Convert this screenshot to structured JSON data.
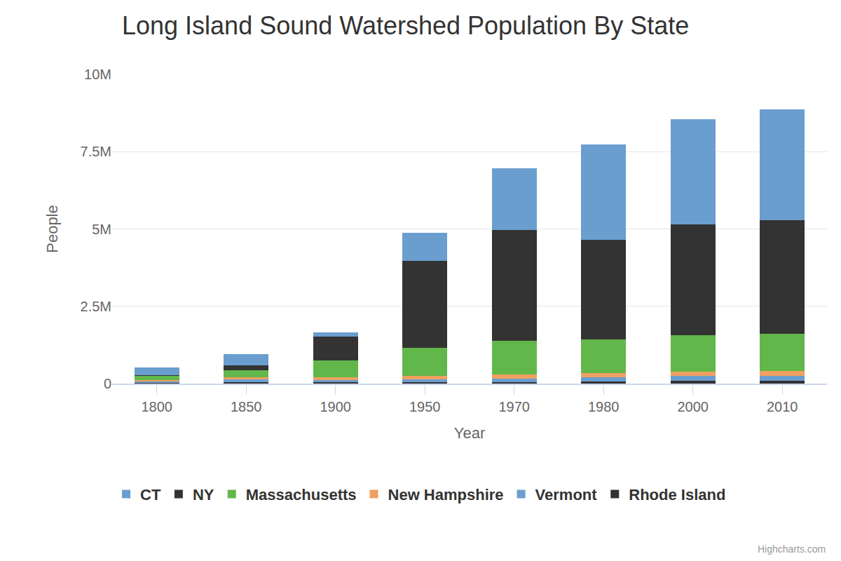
{
  "chart_data": {
    "type": "bar",
    "title": "Long Island Sound Watershed Population By State",
    "x_label": "Year",
    "y_label": "People",
    "categories": [
      "1800",
      "1850",
      "1900",
      "1950",
      "1970",
      "1980",
      "2000",
      "2010"
    ],
    "series": [
      {
        "name": "CT",
        "color": "#6a9ecf",
        "values": [
          250000,
          360000,
          140000,
          910000,
          2000000,
          3080000,
          3400000,
          3580000
        ]
      },
      {
        "name": "NY",
        "color": "#333333",
        "values": [
          30000,
          180000,
          770000,
          2810000,
          3580000,
          3220000,
          3580000,
          3670000
        ]
      },
      {
        "name": "Massachusetts",
        "color": "#62b74a",
        "values": [
          120000,
          220000,
          540000,
          910000,
          1090000,
          1090000,
          1180000,
          1220000
        ]
      },
      {
        "name": "New Hampshire",
        "color": "#f0a060",
        "values": [
          50000,
          70000,
          80000,
          120000,
          130000,
          140000,
          140000,
          140000
        ]
      },
      {
        "name": "Vermont",
        "color": "#6a9ecf",
        "values": [
          50000,
          80000,
          80000,
          90000,
          110000,
          140000,
          160000,
          160000
        ]
      },
      {
        "name": "Rhode Island",
        "color": "#333333",
        "values": [
          20000,
          50000,
          40000,
          40000,
          50000,
          60000,
          90000,
          100000
        ]
      }
    ],
    "ylim": [
      0,
      10000000
    ],
    "yticks": [
      0,
      {
        "value": 2500000,
        "label": "2.5M"
      },
      {
        "value": 5000000,
        "label": "5M"
      },
      {
        "value": 7500000,
        "label": "7.5M"
      },
      {
        "value": 10000000,
        "label": "10M"
      }
    ],
    "stacked": true,
    "grid": true,
    "legend": "bottom",
    "data_labels": false,
    "annotations": [
      "Highcharts.com"
    ]
  }
}
